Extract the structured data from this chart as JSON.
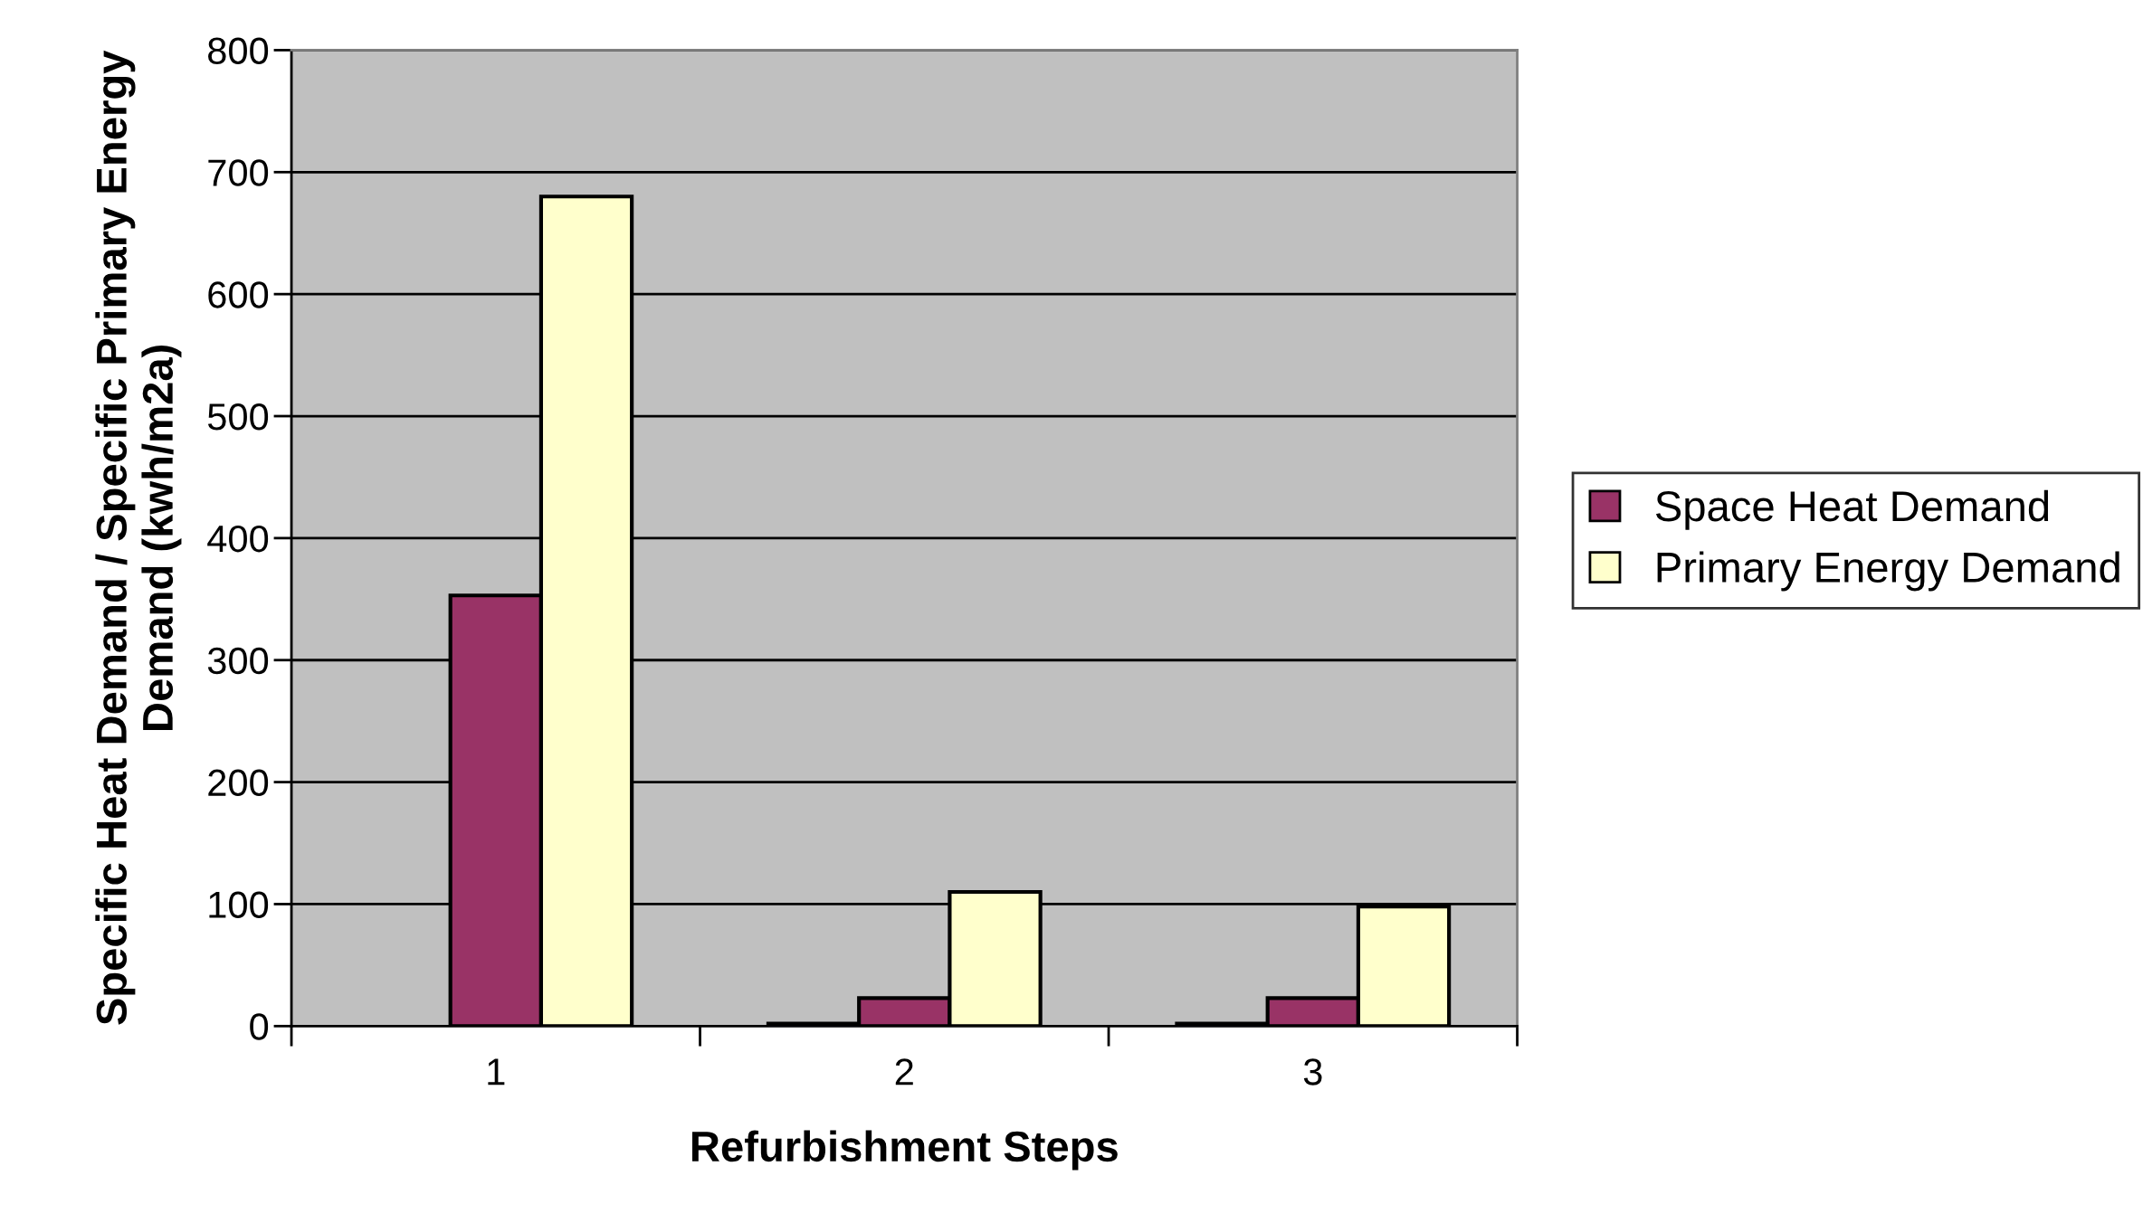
{
  "chart_data": {
    "type": "bar",
    "xlabel": "Refurbishment Steps",
    "ylabel": "Specific Heat Demand / Specific Primary Energy Demand (kwh/m2a)",
    "categories": [
      "1",
      "2",
      "3"
    ],
    "series": [
      {
        "color": "#9999ff",
        "values": [
          null,
          2,
          2
        ]
      },
      {
        "name": "Space Heat Demand",
        "color": "#993366",
        "values": [
          353,
          23,
          23
        ]
      },
      {
        "name": "Primary Energy Demand",
        "color": "#ffffcc",
        "values": [
          680,
          110,
          98
        ]
      }
    ],
    "ylim": [
      0,
      800
    ],
    "yticks": [
      0,
      100,
      200,
      300,
      400,
      500,
      600,
      700,
      800
    ],
    "grid": "y",
    "legend": "right"
  }
}
